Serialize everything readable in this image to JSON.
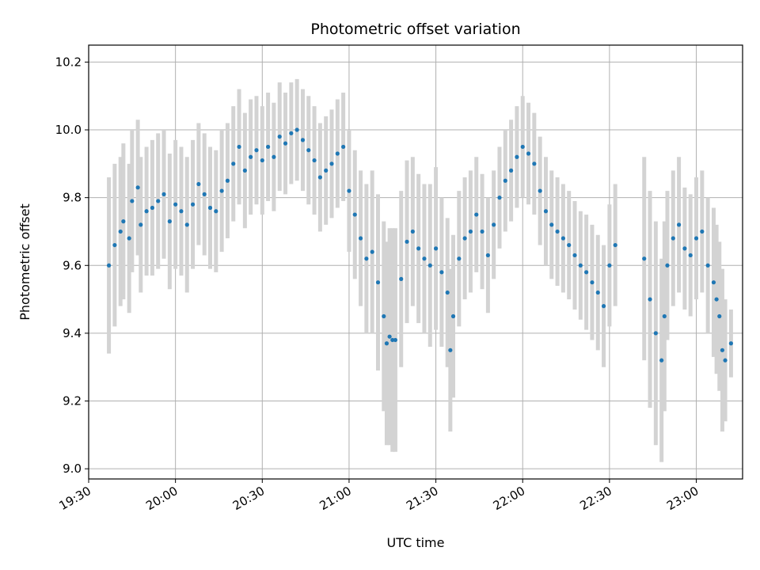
{
  "chart_data": {
    "type": "scatter",
    "title": "Photometric offset variation",
    "xlabel": "UTC time",
    "ylabel": "Photometric offset",
    "x_tick_labels": [
      "19:30",
      "20:00",
      "20:30",
      "21:00",
      "21:30",
      "22:00",
      "22:30",
      "23:00"
    ],
    "y_tick_labels": [
      "9.0",
      "9.2",
      "9.4",
      "9.6",
      "9.8",
      "10.0",
      "10.2"
    ],
    "xlim": [
      "19:30",
      "23:16"
    ],
    "ylim": [
      8.97,
      10.25
    ],
    "grid": true,
    "colors": {
      "points": "#1f77b4",
      "error_bars": "#d3d3d3",
      "grid": "#b0b0b0"
    },
    "series": [
      {
        "x": [
          "19:37",
          "19:39",
          "19:41",
          "19:42",
          "19:44",
          "19:45",
          "19:47",
          "19:48",
          "19:50",
          "19:52",
          "19:54",
          "19:56",
          "19:58",
          "20:00",
          "20:02",
          "20:04",
          "20:06",
          "20:08",
          "20:10",
          "20:12",
          "20:14",
          "20:16",
          "20:18",
          "20:20",
          "20:22",
          "20:24",
          "20:26",
          "20:28",
          "20:30",
          "20:32",
          "20:34",
          "20:36",
          "20:38",
          "20:40",
          "20:42",
          "20:44",
          "20:46",
          "20:48",
          "20:50",
          "20:52",
          "20:54",
          "20:56",
          "20:58",
          "21:00",
          "21:02",
          "21:04",
          "21:06",
          "21:08",
          "21:10",
          "21:12",
          "21:13",
          "21:14",
          "21:15",
          "21:16",
          "21:18",
          "21:20",
          "21:22",
          "21:24",
          "21:26",
          "21:28",
          "21:30",
          "21:32",
          "21:34",
          "21:35",
          "21:36",
          "21:38",
          "21:40",
          "21:42",
          "21:44",
          "21:46",
          "21:48",
          "21:50",
          "21:52",
          "21:54",
          "21:56",
          "21:58",
          "22:00",
          "22:02",
          "22:04",
          "22:06",
          "22:08",
          "22:10",
          "22:12",
          "22:14",
          "22:16",
          "22:18",
          "22:20",
          "22:22",
          "22:24",
          "22:26",
          "22:28",
          "22:30",
          "22:32",
          "22:42",
          "22:44",
          "22:46",
          "22:48",
          "22:49",
          "22:50",
          "22:52",
          "22:54",
          "22:56",
          "22:58",
          "23:00",
          "23:02",
          "23:04",
          "23:06",
          "23:07",
          "23:08",
          "23:09",
          "23:10",
          "23:12"
        ],
        "y": [
          9.6,
          9.66,
          9.7,
          9.73,
          9.68,
          9.79,
          9.83,
          9.72,
          9.76,
          9.77,
          9.79,
          9.81,
          9.73,
          9.78,
          9.76,
          9.72,
          9.78,
          9.84,
          9.81,
          9.77,
          9.76,
          9.82,
          9.85,
          9.9,
          9.95,
          9.88,
          9.92,
          9.94,
          9.91,
          9.95,
          9.92,
          9.98,
          9.96,
          9.99,
          10.0,
          9.97,
          9.94,
          9.91,
          9.86,
          9.88,
          9.9,
          9.93,
          9.95,
          9.82,
          9.75,
          9.68,
          9.62,
          9.64,
          9.55,
          9.45,
          9.37,
          9.39,
          9.38,
          9.38,
          9.56,
          9.67,
          9.7,
          9.65,
          9.62,
          9.6,
          9.65,
          9.58,
          9.52,
          9.35,
          9.45,
          9.62,
          9.68,
          9.7,
          9.75,
          9.7,
          9.63,
          9.72,
          9.8,
          9.85,
          9.88,
          9.92,
          9.95,
          9.93,
          9.9,
          9.82,
          9.76,
          9.72,
          9.7,
          9.68,
          9.66,
          9.63,
          9.6,
          9.58,
          9.55,
          9.52,
          9.48,
          9.6,
          9.66,
          9.62,
          9.5,
          9.4,
          9.32,
          9.45,
          9.6,
          9.68,
          9.72,
          9.65,
          9.63,
          9.68,
          9.7,
          9.6,
          9.55,
          9.5,
          9.45,
          9.35,
          9.32,
          9.37
        ],
        "yerr": [
          0.26,
          0.24,
          0.22,
          0.23,
          0.22,
          0.21,
          0.2,
          0.2,
          0.19,
          0.2,
          0.2,
          0.19,
          0.2,
          0.19,
          0.19,
          0.2,
          0.19,
          0.18,
          0.18,
          0.18,
          0.18,
          0.18,
          0.17,
          0.17,
          0.17,
          0.17,
          0.17,
          0.16,
          0.16,
          0.16,
          0.16,
          0.16,
          0.15,
          0.15,
          0.15,
          0.15,
          0.16,
          0.16,
          0.16,
          0.16,
          0.16,
          0.16,
          0.16,
          0.18,
          0.19,
          0.2,
          0.22,
          0.24,
          0.26,
          0.28,
          0.3,
          0.32,
          0.33,
          0.33,
          0.26,
          0.24,
          0.22,
          0.22,
          0.22,
          0.24,
          0.24,
          0.22,
          0.22,
          0.24,
          0.24,
          0.2,
          0.18,
          0.18,
          0.17,
          0.17,
          0.17,
          0.16,
          0.15,
          0.15,
          0.15,
          0.15,
          0.15,
          0.15,
          0.15,
          0.16,
          0.16,
          0.16,
          0.16,
          0.16,
          0.16,
          0.16,
          0.16,
          0.17,
          0.17,
          0.17,
          0.18,
          0.18,
          0.18,
          0.3,
          0.32,
          0.33,
          0.3,
          0.28,
          0.22,
          0.2,
          0.2,
          0.18,
          0.18,
          0.18,
          0.18,
          0.2,
          0.22,
          0.22,
          0.22,
          0.24,
          0.18,
          0.1
        ]
      }
    ]
  }
}
